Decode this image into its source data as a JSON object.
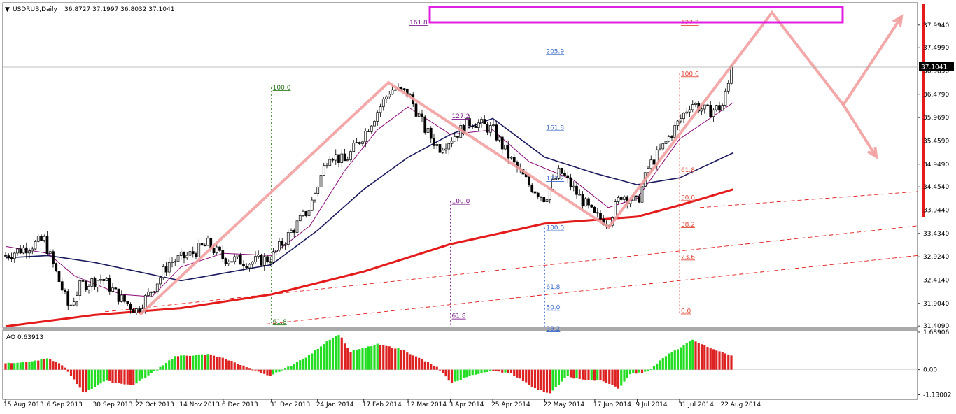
{
  "header": {
    "symbol_label": "USDRUB,Daily",
    "ohlc_text": "36.8727 37.1997 36.8032 37.1041",
    "dropdown_glyph": "▼"
  },
  "colors": {
    "up_candle": "#ffffff",
    "down_candle": "#000000",
    "ma_short": "#8b0a78",
    "ma_mid": "#1a1a5e",
    "ma_long": "#e31b1b",
    "channel": "#e31b1b",
    "zigzag": "#f2a0a0",
    "target_box": "#e020e0",
    "ao_up": "#22dd22",
    "ao_down": "#dd2222",
    "price_marker_bg": "#000000",
    "right_edge_bar": "#e31b1b",
    "fib_green": "#2a7a1a",
    "fib_purple": "#7a1a8a",
    "fib_blue": "#3a6acc",
    "fib_red": "#e04a3a"
  },
  "price_marker": "37.1041",
  "chart_data": [
    {
      "type": "candlestick",
      "title": "USDRUB,Daily",
      "y_ticks": [
        "37.9940",
        "37.4990",
        "36.9890",
        "36.4790",
        "35.9690",
        "35.4590",
        "34.9490",
        "34.4540",
        "33.9440",
        "33.4340",
        "32.9240",
        "32.4140",
        "31.9040",
        "31.4090"
      ],
      "x_ticks": [
        "15 Aug 2013",
        "6 Sep 2013",
        "30 Sep 2013",
        "22 Oct 2013",
        "14 Nov 2013",
        "6 Dec 2013",
        "31 Dec 2013",
        "24 Jan 2014",
        "17 Feb 2014",
        "12 Mar 2014",
        "3 Apr 2014",
        "25 Apr 2014",
        "22 May 2014",
        "17 Jun 2014",
        "9 Jul 2014",
        "31 Jul 2014",
        "22 Aug 2014"
      ],
      "ylim": [
        31.35,
        38.45
      ],
      "last_close": 37.1041,
      "price_path": [
        {
          "x": "15 Aug 2013",
          "y": 32.95
        },
        {
          "x": "30 Aug 2013",
          "y": 33.2
        },
        {
          "x": "4 Sep 2013",
          "y": 33.3
        },
        {
          "x": "10 Sep 2013",
          "y": 32.6
        },
        {
          "x": "17 Sep 2013",
          "y": 31.8
        },
        {
          "x": "23 Sep 2013",
          "y": 32.3
        },
        {
          "x": "4 Oct 2013",
          "y": 32.45
        },
        {
          "x": "14 Oct 2013",
          "y": 32.0
        },
        {
          "x": "22 Oct 2013",
          "y": 31.75
        },
        {
          "x": "30 Oct 2013",
          "y": 32.2
        },
        {
          "x": "8 Nov 2013",
          "y": 32.8
        },
        {
          "x": "18 Nov 2013",
          "y": 32.95
        },
        {
          "x": "28 Nov 2013",
          "y": 33.2
        },
        {
          "x": "6 Dec 2013",
          "y": 32.9
        },
        {
          "x": "20 Dec 2013",
          "y": 32.8
        },
        {
          "x": "31 Dec 2013",
          "y": 32.9
        },
        {
          "x": "9 Jan 2014",
          "y": 33.4
        },
        {
          "x": "20 Jan 2014",
          "y": 34.0
        },
        {
          "x": "30 Jan 2014",
          "y": 35.2
        },
        {
          "x": "7 Feb 2014",
          "y": 35.0
        },
        {
          "x": "17 Feb 2014",
          "y": 35.6
        },
        {
          "x": "24 Feb 2014",
          "y": 36.1
        },
        {
          "x": "3 Mar 2014",
          "y": 36.6
        },
        {
          "x": "12 Mar 2014",
          "y": 36.5
        },
        {
          "x": "21 Mar 2014",
          "y": 35.7
        },
        {
          "x": "28 Mar 2014",
          "y": 35.3
        },
        {
          "x": "3 Apr 2014",
          "y": 35.5
        },
        {
          "x": "14 Apr 2014",
          "y": 35.9
        },
        {
          "x": "25 Apr 2014",
          "y": 35.7
        },
        {
          "x": "5 May 2014",
          "y": 35.0
        },
        {
          "x": "14 May 2014",
          "y": 34.5
        },
        {
          "x": "22 May 2014",
          "y": 34.2
        },
        {
          "x": "30 May 2014",
          "y": 34.8
        },
        {
          "x": "6 Jun 2014",
          "y": 34.4
        },
        {
          "x": "17 Jun 2014",
          "y": 33.8
        },
        {
          "x": "24 Jun 2014",
          "y": 33.7
        },
        {
          "x": "1 Jul 2014",
          "y": 34.3
        },
        {
          "x": "9 Jul 2014",
          "y": 34.1
        },
        {
          "x": "15 Jul 2014",
          "y": 34.9
        },
        {
          "x": "22 Jul 2014",
          "y": 35.3
        },
        {
          "x": "31 Jul 2014",
          "y": 35.9
        },
        {
          "x": "6 Aug 2014",
          "y": 36.3
        },
        {
          "x": "14 Aug 2014",
          "y": 36.1
        },
        {
          "x": "22 Aug 2014",
          "y": 36.2
        },
        {
          "x": "28 Aug 2014",
          "y": 37.1
        }
      ],
      "ma_short_path": [
        {
          "x": "15 Aug 2013",
          "y": 33.15
        },
        {
          "x": "6 Sep 2013",
          "y": 33.0
        },
        {
          "x": "20 Sep 2013",
          "y": 32.5
        },
        {
          "x": "14 Oct 2013",
          "y": 32.1
        },
        {
          "x": "30 Oct 2013",
          "y": 32.05
        },
        {
          "x": "14 Nov 2013",
          "y": 32.7
        },
        {
          "x": "6 Dec 2013",
          "y": 33.0
        },
        {
          "x": "31 Dec 2013",
          "y": 32.95
        },
        {
          "x": "20 Jan 2014",
          "y": 33.6
        },
        {
          "x": "7 Feb 2014",
          "y": 34.8
        },
        {
          "x": "24 Feb 2014",
          "y": 35.7
        },
        {
          "x": "12 Mar 2014",
          "y": 36.2
        },
        {
          "x": "3 Apr 2014",
          "y": 35.6
        },
        {
          "x": "25 Apr 2014",
          "y": 35.7
        },
        {
          "x": "14 May 2014",
          "y": 35.0
        },
        {
          "x": "6 Jun 2014",
          "y": 34.6
        },
        {
          "x": "24 Jun 2014",
          "y": 34.0
        },
        {
          "x": "9 Jul 2014",
          "y": 34.2
        },
        {
          "x": "31 Jul 2014",
          "y": 35.5
        },
        {
          "x": "28 Aug 2014",
          "y": 36.3
        }
      ],
      "ma_mid_path": [
        {
          "x": "15 Aug 2013",
          "y": 32.9
        },
        {
          "x": "6 Sep 2013",
          "y": 32.95
        },
        {
          "x": "30 Sep 2013",
          "y": 32.8
        },
        {
          "x": "14 Nov 2013",
          "y": 32.4
        },
        {
          "x": "31 Dec 2013",
          "y": 32.75
        },
        {
          "x": "24 Jan 2014",
          "y": 33.5
        },
        {
          "x": "17 Feb 2014",
          "y": 34.4
        },
        {
          "x": "12 Mar 2014",
          "y": 35.1
        },
        {
          "x": "3 Apr 2014",
          "y": 35.6
        },
        {
          "x": "25 Apr 2014",
          "y": 35.95
        },
        {
          "x": "22 May 2014",
          "y": 35.1
        },
        {
          "x": "17 Jun 2014",
          "y": 34.75
        },
        {
          "x": "9 Jul 2014",
          "y": 34.5
        },
        {
          "x": "31 Jul 2014",
          "y": 34.65
        },
        {
          "x": "28 Aug 2014",
          "y": 35.2
        }
      ],
      "ma_long_path": [
        {
          "x": "15 Aug 2013",
          "y": 31.4
        },
        {
          "x": "30 Sep 2013",
          "y": 31.65
        },
        {
          "x": "14 Nov 2013",
          "y": 31.8
        },
        {
          "x": "31 Dec 2013",
          "y": 32.1
        },
        {
          "x": "17 Feb 2014",
          "y": 32.6
        },
        {
          "x": "3 Apr 2014",
          "y": 33.2
        },
        {
          "x": "22 May 2014",
          "y": 33.65
        },
        {
          "x": "9 Jul 2014",
          "y": 33.8
        },
        {
          "x": "31 Jul 2014",
          "y": 34.05
        },
        {
          "x": "28 Aug 2014",
          "y": 34.4
        }
      ],
      "fib_labels": [
        {
          "text": "161.8",
          "color": "fib_purple",
          "x": "12 Mar 2014",
          "y": 38.05
        },
        {
          "text": "127.2",
          "color": "fib_red",
          "x": "31 Jul 2014",
          "y": 38.05
        },
        {
          "text": "205.9",
          "color": "fib_blue",
          "x": "22 May 2014",
          "y": 37.42
        },
        {
          "text": "100.0",
          "color": "fib_green",
          "x": "31 Dec 2013",
          "y": 36.63
        },
        {
          "text": "100.0",
          "color": "fib_red",
          "x": "31 Jul 2014",
          "y": 36.93
        },
        {
          "text": "127.2",
          "color": "fib_purple",
          "x": "3 Apr 2014",
          "y": 36.0
        },
        {
          "text": "161.8",
          "color": "fib_blue",
          "x": "22 May 2014",
          "y": 35.75
        },
        {
          "text": "61.8",
          "color": "fib_red",
          "x": "31 Jul 2014",
          "y": 34.82
        },
        {
          "text": "127.2",
          "color": "fib_blue",
          "x": "22 May 2014",
          "y": 34.64
        },
        {
          "text": "50.0",
          "color": "fib_red",
          "x": "31 Jul 2014",
          "y": 34.22
        },
        {
          "text": "100.0",
          "color": "fib_purple",
          "x": "3 Apr 2014",
          "y": 34.14
        },
        {
          "text": "38.2",
          "color": "fib_red",
          "x": "31 Jul 2014",
          "y": 33.63
        },
        {
          "text": "100.0",
          "color": "fib_blue",
          "x": "22 May 2014",
          "y": 33.56
        },
        {
          "text": "23.6",
          "color": "fib_red",
          "x": "31 Jul 2014",
          "y": 32.92
        },
        {
          "text": "61.8",
          "color": "fib_blue",
          "x": "22 May 2014",
          "y": 32.27
        },
        {
          "text": "50.0",
          "color": "fib_blue",
          "x": "22 May 2014",
          "y": 31.82
        },
        {
          "text": "61.8",
          "color": "fib_purple",
          "x": "3 Apr 2014",
          "y": 31.63
        },
        {
          "text": "0.0",
          "color": "fib_red",
          "x": "31 Jul 2014",
          "y": 31.74
        },
        {
          "text": "61.8",
          "color": "fib_green",
          "x": "31 Dec 2013",
          "y": 31.5
        },
        {
          "text": "38.2",
          "color": "fib_blue",
          "x": "22 May 2014",
          "y": 31.35
        }
      ]
    },
    {
      "type": "bar",
      "title": "AO 0.63913",
      "y_ticks": [
        "1.68906",
        "0.00",
        "-1.13002"
      ],
      "ylim": [
        -1.3,
        1.72
      ],
      "last_value": 0.63913
    }
  ]
}
